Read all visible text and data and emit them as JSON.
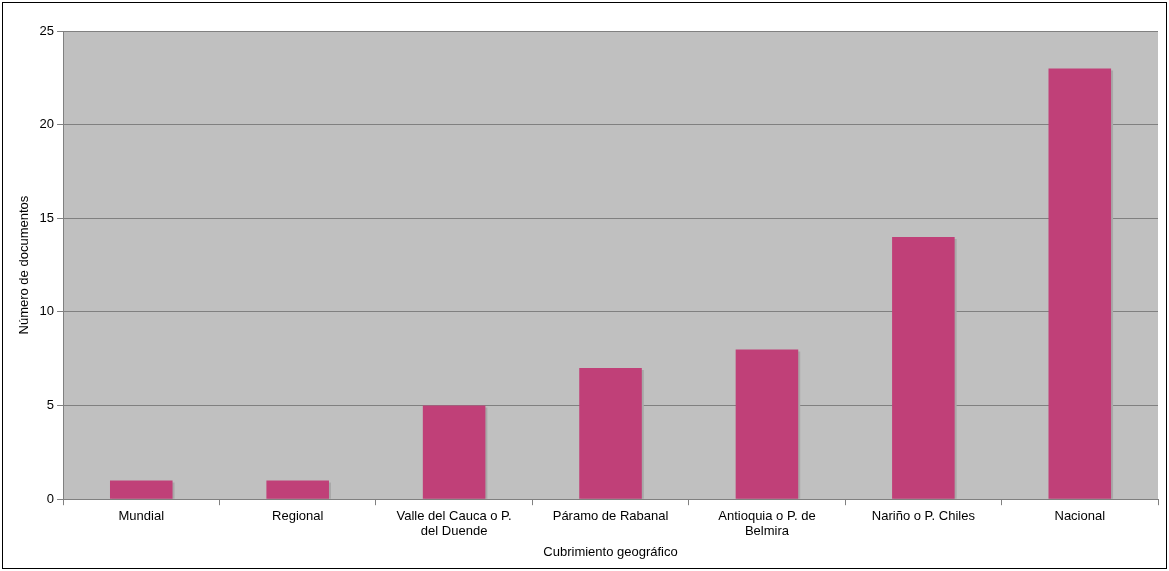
{
  "chart_data": {
    "type": "bar",
    "xlabel": "Cubrimiento geográfico",
    "ylabel": "Número de documentos",
    "categories": [
      "Mundial",
      "Regional",
      "Valle del Cauca o P. del Duende",
      "Páramo de Rabanal",
      "Antioquia o P. de Belmira",
      "Nariño o P. Chiles",
      "Nacional"
    ],
    "values": [
      1,
      1,
      5,
      7,
      8,
      14,
      23
    ],
    "color": "#c04078",
    "ylim": [
      0,
      25
    ],
    "yticks": [
      0,
      5,
      10,
      15,
      20,
      25
    ],
    "grid": "y",
    "legend": false
  }
}
